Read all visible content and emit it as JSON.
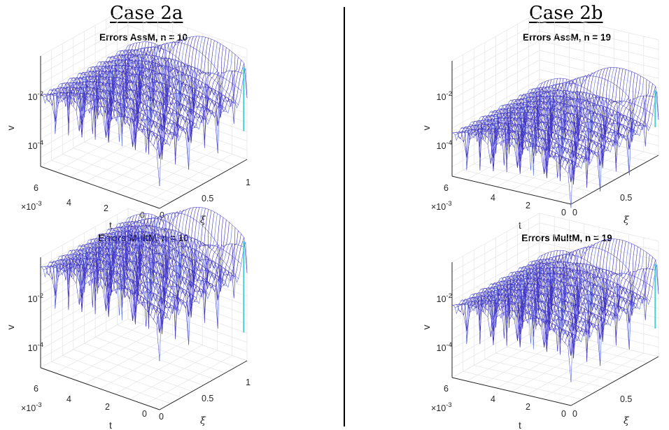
{
  "cases": [
    {
      "label": "Case 2a"
    },
    {
      "label": "Case 2b"
    }
  ],
  "chart_data": [
    {
      "type": "surface",
      "title": "Errors AssM, n = 10",
      "xlabel": "t",
      "ylabel": "ξ",
      "zlabel": "v",
      "t_ticks": [
        "6",
        "4",
        "2",
        "0"
      ],
      "t_exponent": "×10-3",
      "xi_ticks": [
        "0",
        "0.5",
        "1"
      ],
      "z_ticks": [
        "10-2",
        "10-4"
      ],
      "z_scale": "log",
      "tlim": [
        0,
        0.006
      ],
      "xilim": [
        0,
        1
      ],
      "grid": true,
      "colormap": "parula",
      "level": "high",
      "description_levels": {
        "base": "1e-4",
        "peak": "1e-2"
      }
    },
    {
      "type": "surface",
      "title": "Errors AssM, n = 19",
      "xlabel": "t",
      "ylabel": "ξ",
      "zlabel": "v",
      "t_ticks": [
        "6",
        "4",
        "2",
        "0"
      ],
      "t_exponent": "×10-3",
      "xi_ticks": [
        "0",
        "0.5"
      ],
      "z_ticks": [
        "10-2",
        "10-4"
      ],
      "z_scale": "log",
      "tlim": [
        0,
        0.006
      ],
      "xilim": [
        0,
        1
      ],
      "grid": true,
      "colormap": "parula",
      "level": "low",
      "description_levels": {
        "base": "1e-5",
        "peak": "1e-2"
      }
    },
    {
      "type": "surface",
      "title": "Errors MultM, n = 10",
      "xlabel": "t",
      "ylabel": "ξ",
      "zlabel": "v",
      "t_ticks": [
        "6",
        "4",
        "2",
        "0"
      ],
      "t_exponent": "×10-3",
      "xi_ticks": [
        "0",
        "0.5",
        "1"
      ],
      "z_ticks": [
        "10-2",
        "10-4"
      ],
      "z_scale": "log",
      "tlim": [
        0,
        0.006
      ],
      "xilim": [
        0,
        1
      ],
      "grid": true,
      "colormap": "parula",
      "level": "highest",
      "description_levels": {
        "base": "1e-3",
        "peak": "1e-1"
      }
    },
    {
      "type": "surface",
      "title": "Errors MultM, n = 19",
      "xlabel": "t",
      "ylabel": "ξ",
      "zlabel": "v",
      "t_ticks": [
        "6",
        "4",
        "2",
        "0"
      ],
      "t_exponent": "×10-3",
      "xi_ticks": [
        "0",
        "0.5"
      ],
      "z_ticks": [
        "10-2",
        "10-4"
      ],
      "z_scale": "log",
      "tlim": [
        0,
        0.006
      ],
      "xilim": [
        0,
        1
      ],
      "grid": true,
      "colormap": "parula",
      "level": "high",
      "description_levels": {
        "base": "1e-4",
        "peak": "1e-2"
      }
    }
  ],
  "colors": {
    "mesh": "#3b2fc0",
    "mesh_light": "#5a6fe0",
    "peak": "#3fd1d0",
    "grid": "#e4e4e4",
    "axis": "#262626"
  }
}
